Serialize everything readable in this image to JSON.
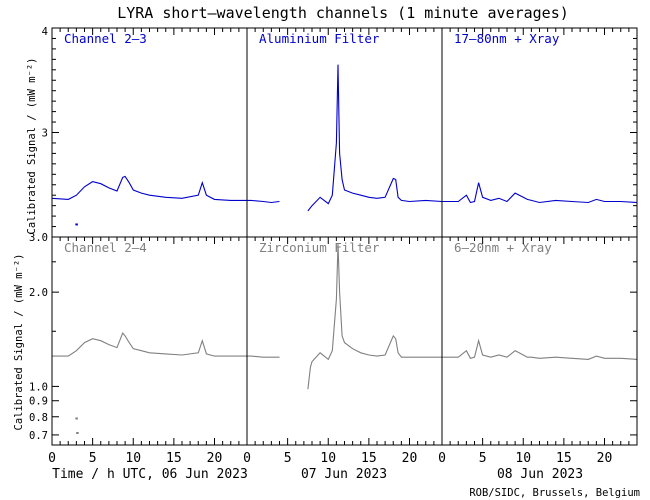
{
  "title": "LYRA short—wavelength channels (1 minute averages)",
  "ylabel": "Calibrated Signal / (mW m⁻²)",
  "xlabels": [
    "Time / h UTC, 06 Jun 2023",
    "07 Jun 2023",
    "08 Jun 2023"
  ],
  "credit": "ROB/SIDC, Brussels, Belgium",
  "xticks": [
    "0",
    "5",
    "10",
    "15",
    "20"
  ],
  "top_yticks": [
    "4",
    "3"
  ],
  "bottom_yticks": [
    "3.0",
    "2.0",
    "1.0",
    "0.9",
    "0.8",
    "0.7"
  ],
  "colors": {
    "top": "#0000cc",
    "bottom": "#808080"
  },
  "chart_data": [
    {
      "type": "line",
      "row": "top",
      "panels": [
        "Channel 2—3",
        "Aluminium Filter",
        "17—80nm + Xray"
      ],
      "x_unit": "hours since 06 Jun 2023 00:00 UTC",
      "x": [
        0,
        2,
        3,
        4,
        5,
        6,
        7,
        8,
        8.7,
        9,
        9.5,
        10,
        11,
        12,
        14,
        16,
        18,
        18.5,
        19,
        20,
        22,
        24,
        24.5,
        26,
        27,
        28,
        28.3,
        31.5,
        32,
        33,
        34,
        34.5,
        35,
        35.2,
        35.4,
        35.7,
        36,
        37,
        38,
        39,
        40,
        41,
        42,
        42.3,
        42.6,
        43,
        44,
        46,
        48,
        48.5,
        50,
        51,
        51.5,
        52,
        52.5,
        53,
        54,
        55,
        56,
        57,
        58,
        58.5,
        59,
        60,
        62,
        64,
        66,
        67,
        68,
        70,
        72
      ],
      "y": [
        2.37,
        2.36,
        2.4,
        2.48,
        2.53,
        2.51,
        2.47,
        2.44,
        2.57,
        2.58,
        2.52,
        2.45,
        2.42,
        2.4,
        2.38,
        2.37,
        2.4,
        2.52,
        2.4,
        2.36,
        2.35,
        2.35,
        2.35,
        2.34,
        2.33,
        2.34,
        null,
        2.25,
        2.3,
        2.38,
        2.32,
        2.4,
        2.9,
        3.65,
        2.8,
        2.55,
        2.45,
        2.42,
        2.4,
        2.38,
        2.37,
        2.38,
        2.56,
        2.55,
        2.38,
        2.35,
        2.34,
        2.35,
        2.34,
        2.34,
        2.34,
        2.4,
        2.33,
        2.34,
        2.52,
        2.38,
        2.35,
        2.37,
        2.34,
        2.42,
        2.38,
        2.36,
        2.35,
        2.33,
        2.35,
        2.34,
        2.33,
        2.36,
        2.34,
        2.34,
        2.33
      ],
      "outliers": [
        [
          3.0,
          2.12
        ]
      ],
      "ylim": [
        2.0,
        4.0
      ]
    },
    {
      "type": "line",
      "row": "bottom",
      "panels": [
        "Channel 2—4",
        "Zirconium Filter",
        "6—20nm + Xray"
      ],
      "x_unit": "hours since 06 Jun 2023 00:00 UTC",
      "x": [
        0,
        2,
        3,
        4,
        5,
        6,
        7,
        8,
        8.7,
        9,
        9.5,
        10,
        11,
        12,
        14,
        16,
        18,
        18.5,
        19,
        20,
        22,
        24,
        24.5,
        26,
        27,
        28,
        28.3,
        31.5,
        31.8,
        32,
        33,
        34,
        34.5,
        35,
        35.2,
        35.4,
        35.7,
        36,
        37,
        38,
        39,
        40,
        41,
        42,
        42.3,
        42.6,
        43,
        44,
        46,
        48,
        48.5,
        50,
        51,
        51.5,
        52,
        52.5,
        53,
        54,
        55,
        56,
        57,
        58,
        58.5,
        59,
        60,
        62,
        64,
        66,
        67,
        68,
        70,
        72
      ],
      "y": [
        1.25,
        1.25,
        1.3,
        1.38,
        1.42,
        1.4,
        1.36,
        1.33,
        1.48,
        1.45,
        1.38,
        1.32,
        1.3,
        1.28,
        1.27,
        1.26,
        1.28,
        1.4,
        1.27,
        1.25,
        1.25,
        1.25,
        1.25,
        1.24,
        1.24,
        1.24,
        null,
        0.98,
        1.15,
        1.2,
        1.28,
        1.22,
        1.3,
        1.9,
        2.85,
        2.0,
        1.45,
        1.38,
        1.32,
        1.28,
        1.26,
        1.25,
        1.26,
        1.45,
        1.42,
        1.28,
        1.24,
        1.24,
        1.24,
        1.24,
        1.24,
        1.24,
        1.3,
        1.23,
        1.24,
        1.4,
        1.26,
        1.24,
        1.26,
        1.24,
        1.3,
        1.26,
        1.24,
        1.24,
        1.23,
        1.24,
        1.23,
        1.22,
        1.25,
        1.23,
        1.23,
        1.22
      ],
      "outliers": [
        [
          3.0,
          0.79
        ],
        [
          3.1,
          0.71
        ]
      ],
      "ylim": [
        0.65,
        3.0
      ]
    }
  ]
}
